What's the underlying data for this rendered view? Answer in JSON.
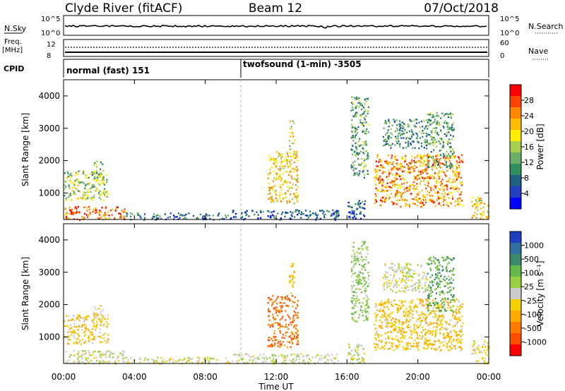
{
  "header": {
    "station": "Clyde River (fitACF)",
    "beam": "Beam 12",
    "date": "07/Oct/2018"
  },
  "panels": {
    "noise": {
      "left_label": "N.Sky",
      "left_ticks": [
        "10^5",
        "10^0"
      ],
      "right_ticks": [
        "10^5",
        "10^0"
      ],
      "right_label": "N.Search"
    },
    "freq": {
      "left_label_1": "Freq.",
      "left_label_2": "[MHz]",
      "left_ticks": [
        "12",
        "8"
      ],
      "right_ticks": [
        "60",
        "0"
      ],
      "right_label": "Nave"
    },
    "cpid": {
      "label": "CPID",
      "mode_1": "normal (fast) 151",
      "mode_2": "twofsound (1-min) -3505"
    }
  },
  "power_colorbar": {
    "label": "Power [dB]",
    "ticks": [
      "28",
      "24",
      "20",
      "16",
      "12",
      "8",
      "4"
    ],
    "colors": [
      "#ff0000",
      "#ff4400",
      "#ff8800",
      "#ffbb00",
      "#ffee00",
      "#a8d050",
      "#6aae6a",
      "#2f8f5f",
      "#1f6080",
      "#2040c0",
      "#0000ff"
    ]
  },
  "velocity_colorbar": {
    "label": "Velocity [m s⁻¹]",
    "ticks": [
      "1000",
      "500",
      "100",
      "25",
      "-25",
      "-100",
      "-500",
      "-1000"
    ],
    "colors": [
      "#1f3fbf",
      "#2f70a0",
      "#3a8a6a",
      "#66b848",
      "#99d040",
      "#cccccc",
      "#f5d000",
      "#ffaa00",
      "#ff7a00",
      "#ff4d00",
      "#ff0000"
    ]
  },
  "chart_data": {
    "type": "heatmap",
    "title": "Clyde River (fitACF)  Beam 12  07/Oct/2018",
    "xlabel": "Time UT",
    "x_ticks": [
      "00:00",
      "04:00",
      "08:00",
      "12:00",
      "16:00",
      "20:00",
      "00:00"
    ],
    "xlim_hours": [
      0,
      24
    ],
    "panels": [
      {
        "name": "Power",
        "ylabel": "Slant Range [km]",
        "y_ticks": [
          "4000",
          "3000",
          "2000",
          "1000"
        ],
        "ylim": [
          180,
          4500
        ],
        "unit": "dB",
        "clim": [
          0,
          32
        ]
      },
      {
        "name": "Velocity",
        "ylabel": "Slant Range [km]",
        "y_ticks": [
          "4000",
          "3000",
          "2000",
          "1000"
        ],
        "ylim": [
          180,
          4500
        ],
        "unit": "m s-1",
        "clim": [
          -1000,
          1000
        ]
      }
    ],
    "mode_change_hour": 10.0,
    "scatter_regions": [
      {
        "t0": 0.0,
        "t1": 2.5,
        "r0": 800,
        "r1": 1700,
        "power": 16,
        "velocity": -200
      },
      {
        "t0": 0.0,
        "t1": 3.5,
        "r0": 190,
        "r1": 600,
        "power": 26,
        "velocity": 30
      },
      {
        "t0": 1.5,
        "t1": 2.2,
        "r0": 1500,
        "r1": 2000,
        "power": 12,
        "velocity": -100
      },
      {
        "t0": 3.5,
        "t1": 9.5,
        "r0": 190,
        "r1": 400,
        "power": 8,
        "velocity": 20
      },
      {
        "t0": 9.5,
        "t1": 15.5,
        "r0": 190,
        "r1": 500,
        "power": 6,
        "velocity": 50
      },
      {
        "t0": 11.5,
        "t1": 13.2,
        "r0": 700,
        "r1": 2300,
        "power": 20,
        "velocity": -600
      },
      {
        "t0": 12.7,
        "t1": 13.0,
        "r0": 2300,
        "r1": 3300,
        "power": 18,
        "velocity": -300
      },
      {
        "t0": 16.0,
        "t1": 17.0,
        "r0": 200,
        "r1": 800,
        "power": 6,
        "velocity": 30
      },
      {
        "t0": 16.2,
        "t1": 17.2,
        "r0": 1500,
        "r1": 4000,
        "power": 12,
        "velocity": 200
      },
      {
        "t0": 17.5,
        "t1": 22.5,
        "r0": 600,
        "r1": 2200,
        "power": 24,
        "velocity": -250
      },
      {
        "t0": 18.0,
        "t1": 20.5,
        "r0": 2400,
        "r1": 3300,
        "power": 10,
        "velocity": 0
      },
      {
        "t0": 20.5,
        "t1": 22.0,
        "r0": 1800,
        "r1": 3500,
        "power": 12,
        "velocity": 400
      },
      {
        "t0": 23.0,
        "t1": 24.0,
        "r0": 200,
        "r1": 900,
        "power": 20,
        "velocity": -100
      }
    ]
  }
}
